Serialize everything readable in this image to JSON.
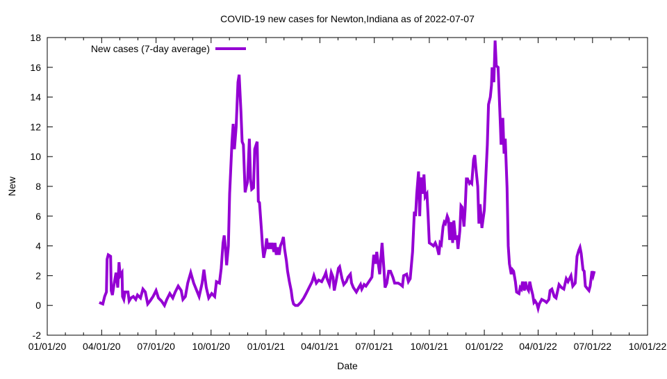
{
  "chart_data": {
    "type": "line",
    "title": "COVID-19 new cases for Newton,Indiana as of 2022-07-07",
    "xlabel": "Date",
    "ylabel": "New",
    "x_units": "days since 2020-01-01",
    "xlim": [
      0,
      1004
    ],
    "ylim": [
      -2,
      18
    ],
    "grid": false,
    "legend_position": "top-left",
    "x_ticks": [
      {
        "day": 0,
        "label": "01/01/20"
      },
      {
        "day": 91,
        "label": "04/01/20"
      },
      {
        "day": 182,
        "label": "07/01/20"
      },
      {
        "day": 274,
        "label": "10/01/20"
      },
      {
        "day": 366,
        "label": "01/01/21"
      },
      {
        "day": 456,
        "label": "04/01/21"
      },
      {
        "day": 547,
        "label": "07/01/21"
      },
      {
        "day": 639,
        "label": "10/01/21"
      },
      {
        "day": 731,
        "label": "01/01/22"
      },
      {
        "day": 821,
        "label": "04/01/22"
      },
      {
        "day": 912,
        "label": "07/01/22"
      },
      {
        "day": 1004,
        "label": "10/01/22"
      }
    ],
    "y_ticks": [
      "-2",
      "0",
      "2",
      "4",
      "6",
      "8",
      "10",
      "12",
      "14",
      "16",
      "18"
    ],
    "series": [
      {
        "name": "New cases (7-day average)",
        "color": "#9400d3",
        "x": [
          87,
          93,
          96,
          99,
          100,
          102,
          106,
          107,
          109,
          112,
          115,
          118,
          120,
          122,
          125,
          126,
          128,
          130,
          135,
          137,
          140,
          144,
          148,
          151,
          156,
          160,
          164,
          168,
          172,
          177,
          182,
          186,
          191,
          196,
          200,
          205,
          210,
          214,
          219,
          224,
          227,
          231,
          235,
          240,
          245,
          249,
          254,
          259,
          262,
          266,
          270,
          275,
          280,
          283,
          288,
          291,
          294,
          296,
          298,
          300,
          303,
          305,
          309,
          311,
          313,
          316,
          319,
          321,
          324,
          326,
          328,
          331,
          333,
          335,
          338,
          340,
          342,
          345,
          347,
          351,
          353,
          355,
          358,
          360,
          362,
          365,
          367,
          369,
          372,
          374,
          376,
          379,
          381,
          383,
          386,
          388,
          390,
          393,
          395,
          397,
          400,
          402,
          405,
          408,
          410,
          412,
          415,
          419,
          424,
          429,
          433,
          438,
          443,
          446,
          450,
          454,
          459,
          464,
          466,
          468,
          472,
          475,
          478,
          480,
          483,
          487,
          489,
          493,
          496,
          500,
          503,
          507,
          509,
          512,
          517,
          521,
          524,
          526,
          530,
          533,
          538,
          543,
          546,
          549,
          551,
          553,
          556,
          558,
          560,
          563,
          565,
          568,
          571,
          574,
          578,
          581,
          587,
          591,
          594,
          596,
          601,
          604,
          607,
          609,
          611,
          614,
          616,
          618,
          621,
          623,
          625,
          628,
          630,
          632,
          635,
          637,
          639,
          643,
          646,
          649,
          652,
          655,
          657,
          659,
          662,
          664,
          666,
          669,
          671,
          673,
          676,
          678,
          680,
          683,
          685,
          687,
          690,
          692,
          694,
          697,
          699,
          701,
          703,
          706,
          708,
          710,
          713,
          715,
          717,
          720,
          722,
          724,
          727,
          729,
          731,
          734,
          736,
          738,
          741,
          743,
          744,
          747,
          749,
          751,
          754,
          756,
          758,
          759,
          762,
          764,
          766,
          769,
          771,
          773,
          776,
          778,
          780,
          783,
          785,
          789,
          791,
          793,
          795,
          798,
          800,
          802,
          805,
          807,
          809,
          812,
          814,
          816,
          819,
          821,
          823,
          827,
          832,
          835,
          839,
          841,
          844,
          848,
          851,
          856,
          860,
          864,
          868,
          871,
          876,
          879,
          883,
          886,
          889,
          891,
          893,
          896,
          898,
          900,
          904,
          906,
          908,
          911,
          913,
          915
        ],
        "y": [
          0.2,
          0.1,
          0.6,
          0.9,
          3.1,
          3.4,
          3.3,
          1.0,
          0.7,
          1.5,
          2.2,
          1.2,
          2.9,
          2.0,
          2.2,
          0.6,
          0.4,
          0.9,
          0.9,
          0.3,
          0.5,
          0.6,
          0.4,
          0.7,
          0.5,
          1.1,
          0.9,
          0.1,
          0.3,
          0.6,
          1.0,
          0.5,
          0.3,
          0.0,
          0.4,
          0.8,
          0.5,
          0.9,
          1.3,
          1.0,
          0.4,
          0.6,
          1.5,
          2.2,
          1.5,
          1.1,
          0.6,
          1.5,
          2.4,
          1.2,
          0.5,
          0.8,
          0.6,
          1.6,
          1.5,
          2.5,
          4.2,
          4.7,
          3.9,
          2.7,
          4.0,
          7.5,
          11.0,
          12.2,
          10.5,
          12.0,
          15.0,
          15.5,
          13.0,
          11.0,
          10.8,
          7.6,
          8.0,
          8.3,
          11.2,
          8.5,
          7.8,
          7.9,
          10.5,
          11.0,
          7.0,
          6.9,
          5.2,
          4.0,
          3.2,
          3.8,
          4.5,
          3.8,
          4.2,
          3.8,
          4.2,
          3.6,
          4.2,
          3.4,
          3.9,
          3.4,
          4.0,
          4.3,
          4.6,
          3.8,
          3.0,
          2.3,
          1.6,
          1.0,
          0.4,
          0.1,
          0.0,
          0.0,
          0.2,
          0.5,
          0.8,
          1.2,
          1.6,
          2.0,
          1.5,
          1.7,
          1.6,
          2.0,
          2.2,
          1.8,
          1.4,
          2.2,
          1.9,
          1.0,
          1.6,
          2.5,
          2.6,
          1.8,
          1.4,
          1.6,
          1.9,
          2.1,
          1.5,
          1.2,
          0.9,
          1.2,
          1.4,
          1.1,
          1.4,
          1.3,
          1.6,
          1.9,
          3.4,
          2.8,
          3.6,
          3.0,
          2.1,
          3.2,
          4.2,
          2.5,
          1.2,
          1.5,
          2.3,
          2.3,
          1.9,
          1.5,
          1.5,
          1.4,
          1.3,
          2.0,
          2.1,
          1.6,
          1.8,
          2.7,
          3.6,
          6.3,
          6.0,
          7.5,
          9.0,
          6.0,
          8.6,
          7.5,
          8.8,
          7.3,
          7.5,
          6.0,
          4.2,
          4.1,
          4.0,
          4.2,
          3.9,
          3.4,
          4.2,
          4.1,
          5.3,
          5.6,
          5.5,
          6.0,
          5.8,
          4.4,
          5.6,
          4.2,
          5.7,
          4.4,
          4.7,
          3.8,
          5.0,
          6.7,
          6.6,
          5.3,
          6.5,
          8.5,
          8.5,
          8.2,
          8.3,
          8.2,
          9.8,
          10.1,
          9.2,
          8.0,
          5.5,
          6.8,
          5.2,
          5.8,
          6.4,
          9.0,
          10.8,
          13.5,
          14.0,
          14.8,
          16.0,
          15.0,
          17.8,
          16.1,
          16.0,
          14.0,
          12.0,
          10.8,
          12.6,
          10.2,
          11.2,
          7.9,
          4.0,
          2.8,
          2.1,
          2.4,
          2.3,
          1.6,
          0.9,
          0.8,
          1.2,
          1.1,
          1.6,
          1.0,
          1.6,
          1.2,
          1.0,
          1.6,
          1.2,
          0.7,
          0.2,
          0.3,
          0.1,
          -0.2,
          0.1,
          0.4,
          0.3,
          0.2,
          0.4,
          1.0,
          1.1,
          0.6,
          0.5,
          1.4,
          1.2,
          1.1,
          1.8,
          1.6,
          2.0,
          1.3,
          1.5,
          3.3,
          3.7,
          3.9,
          3.5,
          2.4,
          2.3,
          1.3,
          1.1,
          1.0,
          1.3,
          2.3,
          2.0,
          2.3
        ]
      }
    ]
  }
}
